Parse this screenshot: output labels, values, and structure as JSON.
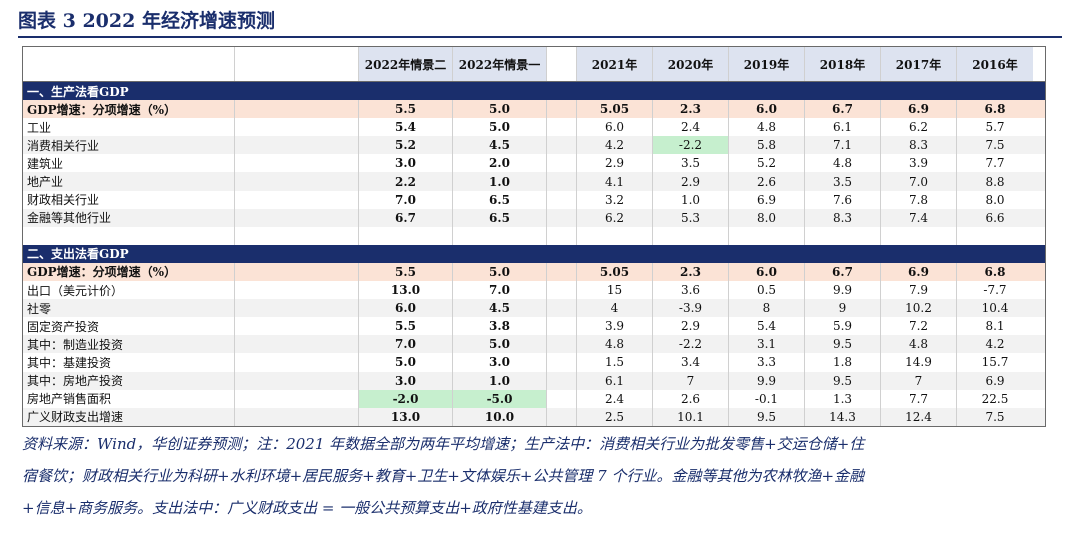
{
  "title": "图表 3   2022 年经济增速预测",
  "headers": {
    "scenarios": [
      "2022年情景二",
      "2022年情景一"
    ],
    "years": [
      "2021年",
      "2020年",
      "2019年",
      "2018年",
      "2017年",
      "2016年"
    ]
  },
  "sections": [
    {
      "title": "一、生产法看GDP",
      "rows": [
        {
          "label": "GDP增速：分项增速（%）",
          "s": [
            "5.5",
            "5.0"
          ],
          "y": [
            "5.05",
            "2.3",
            "6.0",
            "6.7",
            "6.9",
            "6.8"
          ],
          "type": "gdp"
        },
        {
          "label": "工业",
          "s": [
            "5.4",
            "5.0"
          ],
          "y": [
            "6.0",
            "2.4",
            "4.8",
            "6.1",
            "6.2",
            "5.7"
          ]
        },
        {
          "label": "消费相关行业",
          "s": [
            "5.2",
            "4.5"
          ],
          "y": [
            "4.2",
            "-2.2",
            "5.8",
            "7.1",
            "8.3",
            "7.5"
          ],
          "green_y": 1
        },
        {
          "label": "建筑业",
          "s": [
            "3.0",
            "2.0"
          ],
          "y": [
            "2.9",
            "3.5",
            "5.2",
            "4.8",
            "3.9",
            "7.7"
          ]
        },
        {
          "label": "地产业",
          "s": [
            "2.2",
            "1.0"
          ],
          "y": [
            "4.1",
            "2.9",
            "2.6",
            "3.5",
            "7.0",
            "8.8"
          ]
        },
        {
          "label": "财政相关行业",
          "s": [
            "7.0",
            "6.5"
          ],
          "y": [
            "3.2",
            "1.0",
            "6.9",
            "7.6",
            "7.8",
            "8.0"
          ]
        },
        {
          "label": "金融等其他行业",
          "s": [
            "6.7",
            "6.5"
          ],
          "y": [
            "6.2",
            "5.3",
            "8.0",
            "8.3",
            "7.4",
            "6.6"
          ]
        }
      ]
    },
    {
      "title": "二、支出法看GDP",
      "rows": [
        {
          "label": "GDP增速：分项增速（%）",
          "s": [
            "5.5",
            "5.0"
          ],
          "y": [
            "5.05",
            "2.3",
            "6.0",
            "6.7",
            "6.9",
            "6.8"
          ],
          "type": "gdp"
        },
        {
          "label": "出口（美元计价）",
          "s": [
            "13.0",
            "7.0"
          ],
          "y": [
            "15",
            "3.6",
            "0.5",
            "9.9",
            "7.9",
            "-7.7"
          ]
        },
        {
          "label": "社零",
          "s": [
            "6.0",
            "4.5"
          ],
          "y": [
            "4",
            "-3.9",
            "8",
            "9",
            "10.2",
            "10.4"
          ]
        },
        {
          "label": "固定资产投资",
          "s": [
            "5.5",
            "3.8"
          ],
          "y": [
            "3.9",
            "2.9",
            "5.4",
            "5.9",
            "7.2",
            "8.1"
          ]
        },
        {
          "label": "其中：制造业投资",
          "s": [
            "7.0",
            "5.0"
          ],
          "y": [
            "4.8",
            "-2.2",
            "3.1",
            "9.5",
            "4.8",
            "4.2"
          ]
        },
        {
          "label": "其中：基建投资",
          "s": [
            "5.0",
            "3.0"
          ],
          "y": [
            "1.5",
            "3.4",
            "3.3",
            "1.8",
            "14.9",
            "15.7"
          ]
        },
        {
          "label": "其中：房地产投资",
          "s": [
            "3.0",
            "1.0"
          ],
          "y": [
            "6.1",
            "7",
            "9.9",
            "9.5",
            "7",
            "6.9"
          ]
        },
        {
          "label": "房地产销售面积",
          "s": [
            "-2.0",
            "-5.0"
          ],
          "y": [
            "2.4",
            "2.6",
            "-0.1",
            "1.3",
            "7.7",
            "22.5"
          ],
          "green_s": true
        },
        {
          "label": "广义财政支出增速",
          "s": [
            "13.0",
            "10.0"
          ],
          "y": [
            "2.5",
            "10.1",
            "9.5",
            "14.3",
            "12.4",
            "7.5"
          ]
        }
      ]
    }
  ],
  "footer": [
    "资料来源：Wind，华创证券预测；注：2021 年数据全部为两年平均增速；生产法中：消费相关行业为批发零售+交运仓储+住",
    "宿餐饮；财政相关行业为科研+水利环境+居民服务+教育+卫生+文体娱乐+公共管理 7 个行业。金融等其他为农林牧渔+金融",
    "+信息+商务服务。支出法中：广义财政支出 = 一般公共预算支出+政府性基建支出。"
  ]
}
